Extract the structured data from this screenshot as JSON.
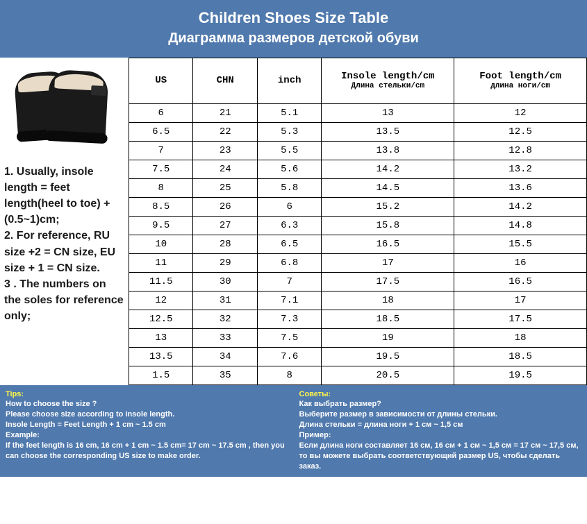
{
  "colors": {
    "header_bg": "#5079ad",
    "header_text": "#ffffff",
    "tip_highlight": "#fff84a",
    "border": "#000000",
    "body_bg": "#ffffff",
    "notes_text": "#1a1a1a"
  },
  "header": {
    "title": "Children Shoes Size Table",
    "subtitle": "Диаграмма размеров детской обуви"
  },
  "notes": {
    "n1": "1. Usually, insole length = feet length(heel to toe) + (0.5~1)cm;",
    "n2": "2. For reference, RU size +2 = CN size, EU size + 1 = CN size.",
    "n3": "3 . The numbers on the soles for reference only;"
  },
  "table": {
    "type": "table",
    "columns": [
      {
        "label": "US",
        "sub": ""
      },
      {
        "label": "CHN",
        "sub": ""
      },
      {
        "label": "inch",
        "sub": ""
      },
      {
        "label": "Insole length/cm",
        "sub": "Длина стельки/cm"
      },
      {
        "label": "Foot length/cm",
        "sub": "длина ноги/cm"
      }
    ],
    "rows": [
      [
        "6",
        "21",
        "5.1",
        "13",
        "12"
      ],
      [
        "6.5",
        "22",
        "5.3",
        "13.5",
        "12.5"
      ],
      [
        "7",
        "23",
        "5.5",
        "13.8",
        "12.8"
      ],
      [
        "7.5",
        "24",
        "5.6",
        "14.2",
        "13.2"
      ],
      [
        "8",
        "25",
        "5.8",
        "14.5",
        "13.6"
      ],
      [
        "8.5",
        "26",
        "6",
        "15.2",
        "14.2"
      ],
      [
        "9.5",
        "27",
        "6.3",
        "15.8",
        "14.8"
      ],
      [
        "10",
        "28",
        "6.5",
        "16.5",
        "15.5"
      ],
      [
        "11",
        "29",
        "6.8",
        "17",
        "16"
      ],
      [
        "11.5",
        "30",
        "7",
        "17.5",
        "16.5"
      ],
      [
        "12",
        "31",
        "7.1",
        "18",
        "17"
      ],
      [
        "12.5",
        "32",
        "7.3",
        "18.5",
        "17.5"
      ],
      [
        "13",
        "33",
        "7.5",
        "19",
        "18"
      ],
      [
        "13.5",
        "34",
        "7.6",
        "19.5",
        "18.5"
      ],
      [
        "1.5",
        "35",
        "8",
        "20.5",
        "19.5"
      ]
    ]
  },
  "tips": {
    "en": {
      "head": "Tips:",
      "l1": "How to choose the size ?",
      "l2": "Please choose size according to insole length.",
      "l3": "Insole Length = Feet Length + 1 cm ~ 1.5 cm",
      "l4": "Example:",
      "l5": "If the feet length is 16 cm, 16 cm + 1 cm ~ 1.5 cm= 17 cm ~ 17.5 cm , then you can choose the corresponding US size to make order."
    },
    "ru": {
      "head": "Советы:",
      "l1": "Как выбрать размер?",
      "l2": "Выберите размер в зависимости от длины стельки.",
      "l3": "Длина стельки = длина ноги + 1 см ~ 1,5 см",
      "l4": "Пример:",
      "l5": "Если длина ноги составляет 16 см, 16 см + 1 см ~ 1,5 см = 17 см ~ 17,5 см, то вы можете выбрать соответствующий размер US, чтобы сделать заказ."
    }
  }
}
